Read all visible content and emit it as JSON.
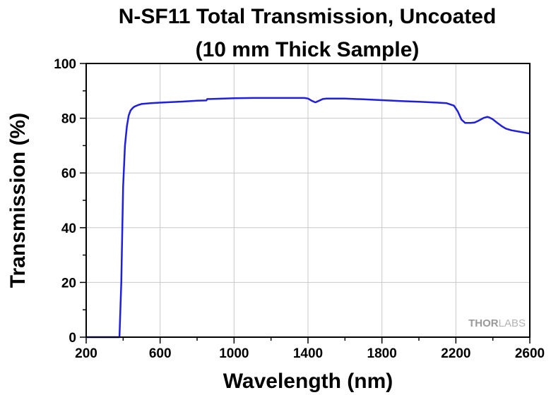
{
  "chart_data": {
    "type": "line",
    "title_lines": [
      "N-SF11 Total Transmission, Uncoated",
      "(10 mm Thick Sample)"
    ],
    "xlabel": "Wavelength (nm)",
    "ylabel": "Transmission (%)",
    "xlim": [
      200,
      2600
    ],
    "ylim": [
      0,
      100
    ],
    "x_ticks": [
      200,
      600,
      1000,
      1400,
      1800,
      2200,
      2600
    ],
    "y_ticks": [
      0,
      20,
      40,
      60,
      80,
      100
    ],
    "x_tick_labels": [
      "200",
      "600",
      "1000",
      "1400",
      "1800",
      "2200",
      "2600"
    ],
    "y_tick_labels": [
      "0",
      "20",
      "40",
      "60",
      "80",
      "100"
    ],
    "grid": true,
    "line_color": "#1f1fdd",
    "series": [
      {
        "x": [
          200,
          300,
          370,
          380,
          390,
          400,
          410,
          420,
          430,
          440,
          450,
          460,
          480,
          500,
          550,
          600,
          700,
          800,
          850,
          855,
          870,
          900,
          1000,
          1100,
          1200,
          1300,
          1380,
          1400,
          1420,
          1440,
          1460,
          1480,
          1500,
          1600,
          1700,
          1800,
          1900,
          2000,
          2100,
          2150,
          2190,
          2210,
          2230,
          2250,
          2280,
          2300,
          2320,
          2350,
          2370,
          2380,
          2400,
          2420,
          2450,
          2470,
          2500,
          2550,
          2600
        ],
        "y": [
          0,
          0,
          0,
          0,
          20,
          55,
          70,
          77,
          81,
          82.8,
          83.6,
          84.2,
          84.8,
          85.2,
          85.5,
          85.7,
          86,
          86.4,
          86.5,
          87,
          87,
          87.1,
          87.3,
          87.4,
          87.4,
          87.4,
          87.4,
          87.2,
          86.4,
          85.8,
          86.4,
          87,
          87.2,
          87.2,
          86.9,
          86.6,
          86.3,
          86,
          85.7,
          85.5,
          84.6,
          82.5,
          79.5,
          78.3,
          78.3,
          78.4,
          79,
          80.1,
          80.5,
          80.3,
          79.6,
          78.5,
          77,
          76.2,
          75.6,
          75,
          74.4
        ]
      }
    ]
  },
  "watermark": {
    "left": "THOR",
    "right": "LABS"
  }
}
